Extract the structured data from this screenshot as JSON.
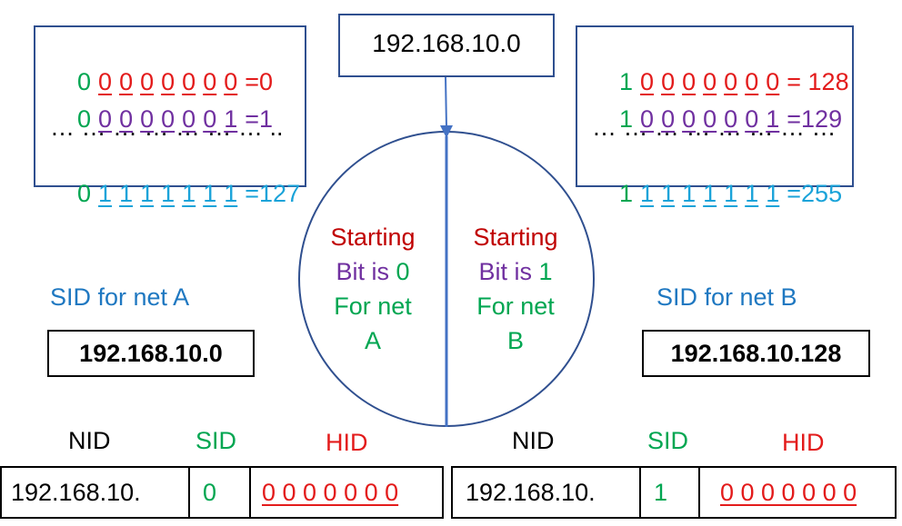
{
  "top_ip": "192.168.10.0",
  "left_box": {
    "rows": [
      {
        "bits": [
          "0",
          "0",
          "0",
          "0",
          "0",
          "0",
          "0",
          "0"
        ],
        "result": "=0"
      },
      {
        "bits": [
          "0",
          "0",
          "0",
          "0",
          "0",
          "0",
          "0",
          "1"
        ],
        "result": "=1"
      },
      {
        "ellipsis": "… … … … … … … .."
      },
      {
        "bits": [
          "0",
          "1",
          "1",
          "1",
          "1",
          "1",
          "1",
          "1"
        ],
        "result": "=127"
      }
    ]
  },
  "right_box": {
    "rows": [
      {
        "bits": [
          "1",
          "0",
          "0",
          "0",
          "0",
          "0",
          "0",
          "0"
        ],
        "result": "= 128"
      },
      {
        "bits": [
          "1",
          "0",
          "0",
          "0",
          "0",
          "0",
          "0",
          "1"
        ],
        "result": "=129"
      },
      {
        "ellipsis": "… … … … … … … …"
      },
      {
        "bits": [
          "1",
          "1",
          "1",
          "1",
          "1",
          "1",
          "1",
          "1"
        ],
        "result": "=255"
      }
    ]
  },
  "circle": {
    "left": {
      "line1": "Starting",
      "line2a": "Bit is ",
      "line2b": "0",
      "line3": "For net",
      "line4": "A"
    },
    "right": {
      "line1": "Starting",
      "line2a": "Bit is ",
      "line2b": "1",
      "line3": "For net",
      "line4": "B"
    }
  },
  "sid_a": {
    "label": "SID for net A",
    "value": "192.168.10.0"
  },
  "sid_b": {
    "label": "SID for net B",
    "value": "192.168.10.128"
  },
  "table_a": {
    "nid_label": "NID",
    "sid_label": "SID",
    "hid_label": "HID",
    "nid": "192.168.10.",
    "sid": "0",
    "hid": "0 0 0 0 0 0 0"
  },
  "table_b": {
    "nid_label": "NID",
    "sid_label": "SID",
    "hid_label": "HID",
    "nid": "192.168.10.",
    "sid": "1",
    "hid": "0 0 0 0 0 0 0"
  },
  "colors": {
    "green": "#00a651",
    "red": "#e31b1b",
    "purple": "#7030a0",
    "cyan": "#1aa3d9",
    "darkred": "#c00000",
    "blue": "#1f78c1",
    "border": "#2f4f8f"
  }
}
